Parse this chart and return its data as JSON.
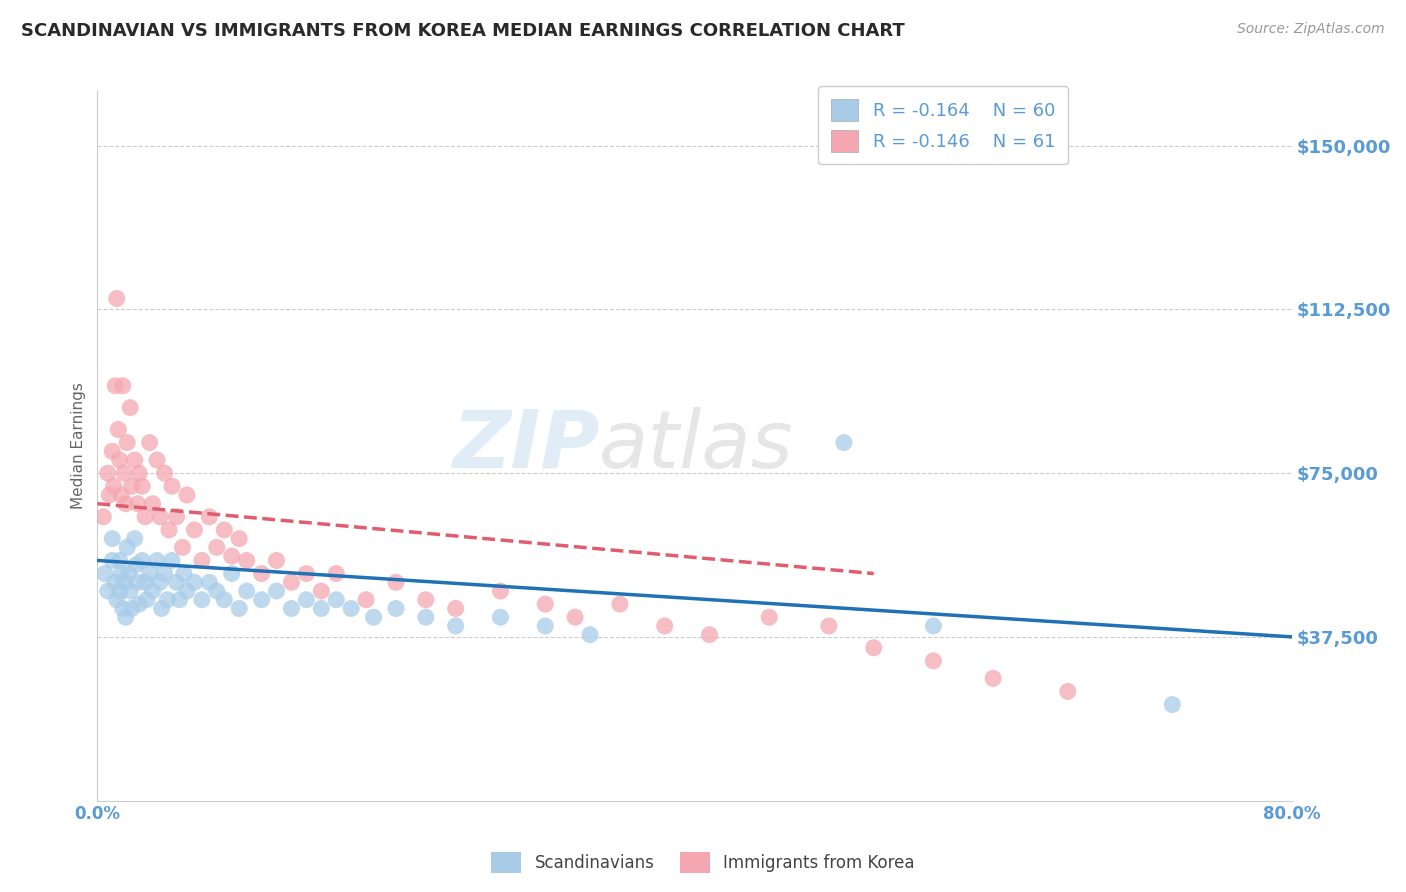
{
  "title": "SCANDINAVIAN VS IMMIGRANTS FROM KOREA MEDIAN EARNINGS CORRELATION CHART",
  "source": "Source: ZipAtlas.com",
  "ylabel": "Median Earnings",
  "xlim": [
    0.0,
    0.8
  ],
  "ylim": [
    0,
    162500
  ],
  "yticks": [
    37500,
    75000,
    112500,
    150000
  ],
  "ytick_labels": [
    "$37,500",
    "$75,000",
    "$112,500",
    "$150,000"
  ],
  "color_blue": "#a8cce8",
  "color_pink": "#f4a7b0",
  "color_trend_blue": "#2171b5",
  "color_trend_pink": "#e05c6e",
  "tick_color": "#5b9bd5",
  "axis_label_color": "#666666",
  "background_color": "#ffffff",
  "grid_color": "#cccccc",
  "scandinavian_x": [
    0.005,
    0.007,
    0.01,
    0.01,
    0.012,
    0.013,
    0.015,
    0.015,
    0.016,
    0.017,
    0.018,
    0.019,
    0.02,
    0.021,
    0.022,
    0.023,
    0.025,
    0.026,
    0.027,
    0.028,
    0.03,
    0.032,
    0.033,
    0.035,
    0.037,
    0.04,
    0.042,
    0.043,
    0.045,
    0.047,
    0.05,
    0.053,
    0.055,
    0.058,
    0.06,
    0.065,
    0.07,
    0.075,
    0.08,
    0.085,
    0.09,
    0.095,
    0.1,
    0.11,
    0.12,
    0.13,
    0.14,
    0.15,
    0.16,
    0.17,
    0.185,
    0.2,
    0.22,
    0.24,
    0.27,
    0.3,
    0.33,
    0.5,
    0.56,
    0.72
  ],
  "scandinavian_y": [
    52000,
    48000,
    60000,
    55000,
    50000,
    46000,
    55000,
    48000,
    52000,
    44000,
    50000,
    42000,
    58000,
    52000,
    48000,
    44000,
    60000,
    54000,
    50000,
    45000,
    55000,
    50000,
    46000,
    52000,
    48000,
    55000,
    50000,
    44000,
    52000,
    46000,
    55000,
    50000,
    46000,
    52000,
    48000,
    50000,
    46000,
    50000,
    48000,
    46000,
    52000,
    44000,
    48000,
    46000,
    48000,
    44000,
    46000,
    44000,
    46000,
    44000,
    42000,
    44000,
    42000,
    40000,
    42000,
    40000,
    38000,
    82000,
    40000,
    22000
  ],
  "korea_x": [
    0.004,
    0.007,
    0.008,
    0.01,
    0.011,
    0.012,
    0.013,
    0.014,
    0.015,
    0.016,
    0.017,
    0.018,
    0.019,
    0.02,
    0.022,
    0.023,
    0.025,
    0.027,
    0.028,
    0.03,
    0.032,
    0.035,
    0.037,
    0.04,
    0.042,
    0.045,
    0.048,
    0.05,
    0.053,
    0.057,
    0.06,
    0.065,
    0.07,
    0.075,
    0.08,
    0.085,
    0.09,
    0.095,
    0.1,
    0.11,
    0.12,
    0.13,
    0.14,
    0.15,
    0.16,
    0.18,
    0.2,
    0.22,
    0.24,
    0.27,
    0.3,
    0.32,
    0.35,
    0.38,
    0.41,
    0.45,
    0.49,
    0.52,
    0.56,
    0.6,
    0.65
  ],
  "korea_y": [
    65000,
    75000,
    70000,
    80000,
    72000,
    95000,
    115000,
    85000,
    78000,
    70000,
    95000,
    75000,
    68000,
    82000,
    90000,
    72000,
    78000,
    68000,
    75000,
    72000,
    65000,
    82000,
    68000,
    78000,
    65000,
    75000,
    62000,
    72000,
    65000,
    58000,
    70000,
    62000,
    55000,
    65000,
    58000,
    62000,
    56000,
    60000,
    55000,
    52000,
    55000,
    50000,
    52000,
    48000,
    52000,
    46000,
    50000,
    46000,
    44000,
    48000,
    45000,
    42000,
    45000,
    40000,
    38000,
    42000,
    40000,
    35000,
    32000,
    28000,
    25000
  ]
}
